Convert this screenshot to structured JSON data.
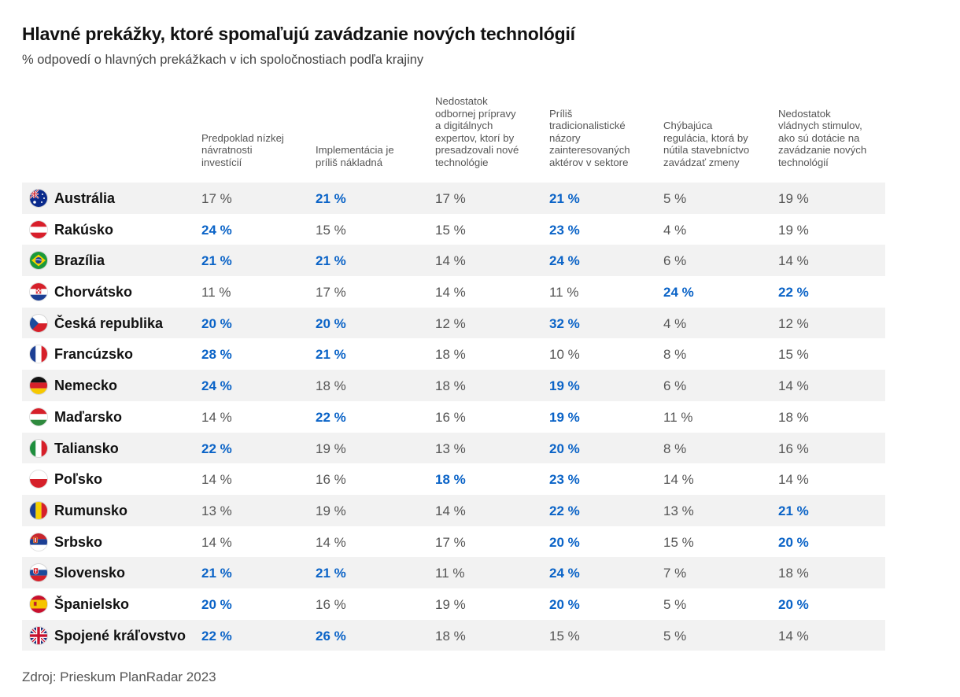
{
  "title": "Hlavné prekážky, ktoré spomaľujú zavádzanie nových technológií",
  "subtitle": "% odpovedí o hlavných prekážkach v ich spoločnostiach podľa krajiny",
  "source": "Zdroj: Prieskum PlanRadar 2023",
  "colors": {
    "highlight": "#0a63c7",
    "text": "#555555",
    "row_shade": "#f2f2f2"
  },
  "chart_data": {
    "type": "table",
    "title": "Hlavné prekážky, ktoré spomaľujú zavádzanie nových technológií",
    "subtitle": "% odpovedí o hlavných prekážkach v ich spoločnostiach podľa krajiny",
    "columns": [
      [
        "Predpoklad nízkej",
        "návratnosti",
        "investícií"
      ],
      [
        "Implementácia je",
        "príliš nákladná"
      ],
      [
        "Nedostatok",
        "odbornej prípravy",
        "a digitálnych",
        "expertov, ktorí by",
        "presadzovali nové",
        "technológie"
      ],
      [
        "Príliš",
        "tradicionalistické",
        "názory",
        "zainteresovaných",
        "aktérov v sektore"
      ],
      [
        "Chýbajúca",
        "regulácia, ktorá by",
        "nútila stavebníctvo",
        "zavádzať zmeny"
      ],
      [
        "Nedostatok",
        "vládnych stimulov,",
        "ako sú dotácie na",
        "zavádzanie nových",
        "technológií"
      ]
    ],
    "rows": [
      {
        "country": "Austrália",
        "flag": "australia-flag-icon",
        "values": [
          "17 %",
          "21 %",
          "17 %",
          "21 %",
          "5 %",
          "19  %"
        ],
        "highlight": [
          false,
          true,
          false,
          true,
          false,
          false
        ]
      },
      {
        "country": "Rakúsko",
        "flag": "austria-flag-icon",
        "values": [
          "24 %",
          "15 %",
          "15 %",
          "23 %",
          "4 %",
          "19 %"
        ],
        "highlight": [
          true,
          false,
          false,
          true,
          false,
          false
        ]
      },
      {
        "country": "Brazília",
        "flag": "brazil-flag-icon",
        "values": [
          "21 %",
          "21 %",
          "14 %",
          "24 %",
          "6 %",
          "14 %"
        ],
        "highlight": [
          true,
          true,
          false,
          true,
          false,
          false
        ]
      },
      {
        "country": "Chorvátsko",
        "flag": "croatia-flag-icon",
        "values": [
          "11 %",
          "17 %",
          "14 %",
          "11 %",
          "24 %",
          "22 %"
        ],
        "highlight": [
          false,
          false,
          false,
          false,
          true,
          true
        ]
      },
      {
        "country": "Česká republika",
        "flag": "czech-flag-icon",
        "values": [
          "20 %",
          "20 %",
          "12 %",
          "32 %",
          "4 %",
          "12 %"
        ],
        "highlight": [
          true,
          true,
          false,
          true,
          false,
          false
        ]
      },
      {
        "country": "Francúzsko",
        "flag": "france-flag-icon",
        "values": [
          "28 %",
          "21 %",
          "18 %",
          "10 %",
          "8 %",
          "15 %"
        ],
        "highlight": [
          true,
          true,
          false,
          false,
          false,
          false
        ]
      },
      {
        "country": "Nemecko",
        "flag": "germany-flag-icon",
        "values": [
          "24 %",
          "18 %",
          "18 %",
          "19 %",
          "6 %",
          "14 %"
        ],
        "highlight": [
          true,
          false,
          false,
          true,
          false,
          false
        ]
      },
      {
        "country": "Maďarsko",
        "flag": "hungary-flag-icon",
        "values": [
          "14 %",
          "22 %",
          "16 %",
          "19 %",
          "11 %",
          "18 %"
        ],
        "highlight": [
          false,
          true,
          false,
          true,
          false,
          false
        ]
      },
      {
        "country": "Taliansko",
        "flag": "italy-flag-icon",
        "values": [
          "22 %",
          "19 %",
          "13 %",
          "20 %",
          "8 %",
          "16 %"
        ],
        "highlight": [
          true,
          false,
          false,
          true,
          false,
          false
        ]
      },
      {
        "country": "Poľsko",
        "flag": "poland-flag-icon",
        "values": [
          "14 %",
          "16 %",
          "18 %",
          "23 %",
          "14 %",
          "14 %"
        ],
        "highlight": [
          false,
          false,
          true,
          true,
          false,
          false
        ]
      },
      {
        "country": "Rumunsko",
        "flag": "romania-flag-icon",
        "values": [
          "13 %",
          "19 %",
          "14 %",
          "22 %",
          "13 %",
          "21 %"
        ],
        "highlight": [
          false,
          false,
          false,
          true,
          false,
          true
        ]
      },
      {
        "country": "Srbsko",
        "flag": "serbia-flag-icon",
        "values": [
          "14 %",
          "14 %",
          "17 %",
          "20 %",
          "15 %",
          "20 %"
        ],
        "highlight": [
          false,
          false,
          false,
          true,
          false,
          true
        ]
      },
      {
        "country": "Slovensko",
        "flag": "slovakia-flag-icon",
        "values": [
          "21 %",
          "21 %",
          "11 %",
          "24 %",
          "7 %",
          "18 %"
        ],
        "highlight": [
          true,
          true,
          false,
          true,
          false,
          false
        ]
      },
      {
        "country": "Španielsko",
        "flag": "spain-flag-icon",
        "values": [
          "20 %",
          "16 %",
          "19 %",
          "20 %",
          "5 %",
          "20 %"
        ],
        "highlight": [
          true,
          false,
          false,
          true,
          false,
          true
        ]
      },
      {
        "country": "Spojené kráľovstvo",
        "flag": "uk-flag-icon",
        "values": [
          "22 %",
          "26 %",
          "18 %",
          "15 %",
          "5 %",
          "14 %"
        ],
        "highlight": [
          true,
          true,
          false,
          false,
          false,
          false
        ]
      }
    ]
  }
}
